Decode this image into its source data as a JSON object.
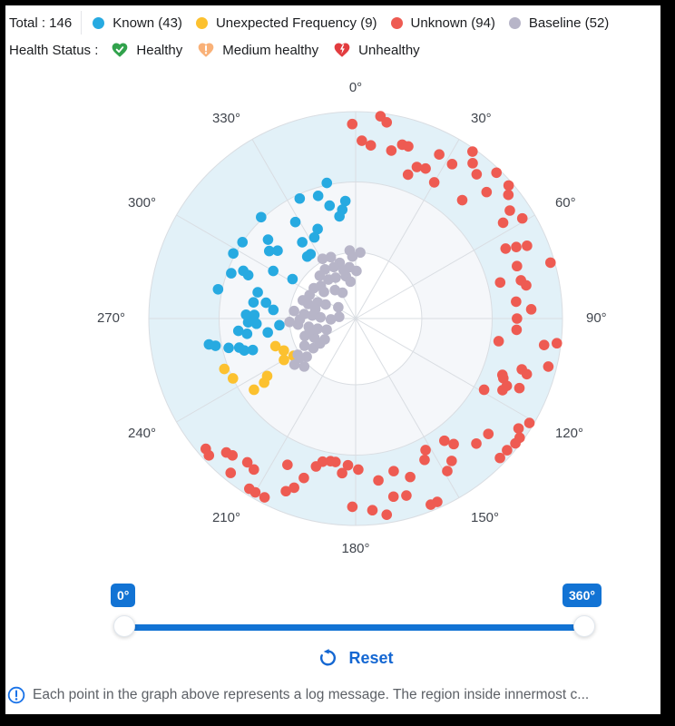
{
  "header": {
    "total_label": "Total : 146",
    "series_legend": [
      {
        "label": "Known (43)",
        "color": "#27aae1"
      },
      {
        "label": "Unexpected Frequency (9)",
        "color": "#fcc12f"
      },
      {
        "label": "Unknown (94)",
        "color": "#ee5b52"
      },
      {
        "label": "Baseline (52)",
        "color": "#b7b5c8"
      }
    ],
    "health_status_label": "Health Status :",
    "health_legend": [
      {
        "label": "Healthy",
        "icon": "heart-check-icon",
        "color": "#31a24c"
      },
      {
        "label": "Medium healthy",
        "icon": "heart-exclamation-icon",
        "color": "#f9b178"
      },
      {
        "label": "Unhealthy",
        "icon": "heart-bolt-icon",
        "color": "#e23c3f"
      }
    ]
  },
  "chart_data": {
    "type": "scatter",
    "coordinate_system": "polar",
    "title": "",
    "angle_axis": {
      "unit": "degrees",
      "start_at_top": true,
      "clockwise": true,
      "tick_labels": [
        "0°",
        "30°",
        "60°",
        "90°",
        "120°",
        "150°",
        "180°",
        "210°",
        "240°",
        "270°",
        "300°",
        "330°"
      ]
    },
    "radial_axis": {
      "range": [
        0,
        1
      ],
      "ring_fractions": [
        0.32,
        0.66,
        1.0
      ]
    },
    "ring_fills": [
      "#ffffff",
      "#f5f7fa",
      "#e2f1f8"
    ],
    "grid_color": "#d9dde2",
    "legend_position": "top",
    "point_radius": 5.8,
    "series": [
      {
        "name": "Known",
        "count": 43,
        "color": "#27aae1",
        "points": [
          [
            348,
            0.67
          ],
          [
            335,
            0.64
          ],
          [
            343,
            0.62
          ],
          [
            347,
            0.56
          ],
          [
            355,
            0.57
          ],
          [
            353,
            0.53
          ],
          [
            351,
            0.5
          ],
          [
            317,
            0.67
          ],
          [
            328,
            0.55
          ],
          [
            337,
            0.47
          ],
          [
            333,
            0.44
          ],
          [
            304,
            0.66
          ],
          [
            312,
            0.57
          ],
          [
            325,
            0.45
          ],
          [
            308,
            0.53
          ],
          [
            311,
            0.5
          ],
          [
            325,
            0.38
          ],
          [
            322,
            0.38
          ],
          [
            298,
            0.67
          ],
          [
            293,
            0.59
          ],
          [
            290,
            0.64
          ],
          [
            292,
            0.56
          ],
          [
            300,
            0.46
          ],
          [
            302,
            0.36
          ],
          [
            282,
            0.68
          ],
          [
            285,
            0.49
          ],
          [
            280,
            0.44
          ],
          [
            276,
            0.4
          ],
          [
            272,
            0.49
          ],
          [
            267,
            0.48
          ],
          [
            265,
            0.37
          ],
          [
            262,
            0.53
          ],
          [
            259,
            0.69
          ],
          [
            256,
            0.58
          ],
          [
            253,
            0.52
          ],
          [
            260,
            0.72
          ],
          [
            257,
            0.63
          ],
          [
            254,
            0.56
          ],
          [
            261,
            0.43
          ],
          [
            264,
            0.57
          ],
          [
            268,
            0.52
          ],
          [
            272,
            0.53
          ],
          [
            279,
            0.5
          ]
        ]
      },
      {
        "name": "Unexpected Frequency",
        "count": 9,
        "color": "#fcc12f",
        "points": [
          [
            251,
            0.41
          ],
          [
            246,
            0.38
          ],
          [
            240,
            0.4
          ],
          [
            249,
            0.68
          ],
          [
            244,
            0.66
          ],
          [
            237,
            0.51
          ],
          [
            235,
            0.54
          ],
          [
            235,
            0.6
          ],
          [
            239,
            0.35
          ]
        ]
      },
      {
        "name": "Unknown",
        "count": 94,
        "color": "#ee5b52",
        "points": [
          [
            7,
            0.99
          ],
          [
            359,
            0.94
          ],
          [
            9,
            0.96
          ],
          [
            2,
            0.86
          ],
          [
            5,
            0.84
          ],
          [
            12,
            0.83
          ],
          [
            15,
            0.87
          ],
          [
            17,
            0.87
          ],
          [
            27,
            0.89
          ],
          [
            22,
            0.79
          ],
          [
            25,
            0.8
          ],
          [
            20,
            0.74
          ],
          [
            30,
            0.76
          ],
          [
            32,
            0.88
          ],
          [
            35,
            0.99
          ],
          [
            37,
            0.94
          ],
          [
            40,
            0.91
          ],
          [
            44,
            0.98
          ],
          [
            49,
            0.98
          ],
          [
            51,
            0.95
          ],
          [
            46,
            0.88
          ],
          [
            42,
            0.77
          ],
          [
            55,
            0.91
          ],
          [
            57,
            0.85
          ],
          [
            59,
            0.94
          ],
          [
            67,
            0.9
          ],
          [
            66,
            0.85
          ],
          [
            65,
            0.8
          ],
          [
            74,
            0.98
          ],
          [
            72,
            0.82
          ],
          [
            77,
            0.82
          ],
          [
            79,
            0.84
          ],
          [
            76,
            0.72
          ],
          [
            84,
            0.78
          ],
          [
            87,
            0.85
          ],
          [
            90,
            0.78
          ],
          [
            94,
            0.78
          ],
          [
            99,
            0.7
          ],
          [
            98,
            0.92
          ],
          [
            97,
            0.98
          ],
          [
            104,
            0.96
          ],
          [
            107,
            0.84
          ],
          [
            111,
            0.76
          ],
          [
            116,
            0.79
          ],
          [
            113,
            0.86
          ],
          [
            119,
            0.71
          ],
          [
            112,
            0.77
          ],
          [
            114,
            0.8
          ],
          [
            108,
            0.87
          ],
          [
            124,
            0.95
          ],
          [
            126,
            0.98
          ],
          [
            128,
            0.98
          ],
          [
            121,
            0.98
          ],
          [
            131,
            0.85
          ],
          [
            136,
            0.84
          ],
          [
            144,
            0.73
          ],
          [
            142,
            0.77
          ],
          [
            152,
            0.72
          ],
          [
            154,
            0.76
          ],
          [
            146,
            0.83
          ],
          [
            149,
            0.86
          ],
          [
            134,
            0.97
          ],
          [
            131,
            0.97
          ],
          [
            166,
            0.76
          ],
          [
            161,
            0.81
          ],
          [
            168,
            0.88
          ],
          [
            164,
            0.89
          ],
          [
            156,
            0.97
          ],
          [
            158,
            0.97
          ],
          [
            181,
            0.91
          ],
          [
            175,
            0.93
          ],
          [
            171,
            0.96
          ],
          [
            172,
            0.79
          ],
          [
            185,
            0.75
          ],
          [
            183,
            0.71
          ],
          [
            179,
            0.73
          ],
          [
            188,
            0.7
          ],
          [
            190,
            0.7
          ],
          [
            193,
            0.71
          ],
          [
            195,
            0.74
          ],
          [
            198,
            0.81
          ],
          [
            200,
            0.87
          ],
          [
            202,
            0.9
          ],
          [
            205,
            0.78
          ],
          [
            207,
            0.97
          ],
          [
            210,
            0.97
          ],
          [
            212,
            0.97
          ],
          [
            219,
            0.96
          ],
          [
            229,
            0.96
          ],
          [
            227,
            0.97
          ],
          [
            224,
            0.9
          ],
          [
            222,
            0.89
          ],
          [
            217,
            0.87
          ],
          [
            214,
            0.88
          ]
        ]
      },
      {
        "name": "Baseline",
        "count": 52,
        "color": "#b7b5c8",
        "points": [
          [
            355,
            0.33
          ],
          [
            4,
            0.32
          ],
          [
            331,
            0.33
          ],
          [
            338,
            0.32
          ],
          [
            344,
            0.28
          ],
          [
            337,
            0.27
          ],
          [
            328,
            0.28
          ],
          [
            353,
            0.25
          ],
          [
            1,
            0.23
          ],
          [
            347,
            0.21
          ],
          [
            352,
            0.18
          ],
          [
            325,
            0.23
          ],
          [
            313,
            0.23
          ],
          [
            324,
            0.17
          ],
          [
            333,
            0.14
          ],
          [
            297,
            0.25
          ],
          [
            289,
            0.27
          ],
          [
            293,
            0.2
          ],
          [
            295,
            0.16
          ],
          [
            303,
            0.1
          ],
          [
            277,
            0.3
          ],
          [
            275,
            0.25
          ],
          [
            274,
            0.21
          ],
          [
            272,
            0.17
          ],
          [
            268,
            0.12
          ],
          [
            276,
            0.08
          ],
          [
            267,
            0.32
          ],
          [
            264,
            0.28
          ],
          [
            260,
            0.23
          ],
          [
            255,
            0.19
          ],
          [
            249,
            0.15
          ],
          [
            251,
            0.26
          ],
          [
            245,
            0.22
          ],
          [
            236,
            0.18
          ],
          [
            242,
            0.28
          ],
          [
            235,
            0.25
          ],
          [
            238,
            0.33
          ],
          [
            232,
            0.3
          ],
          [
            233,
            0.37
          ],
          [
            227,
            0.34
          ],
          [
            357,
            0.3
          ],
          [
            346,
            0.24
          ],
          [
            334,
            0.22
          ],
          [
            320,
            0.27
          ],
          [
            306,
            0.25
          ],
          [
            310,
            0.2
          ],
          [
            287,
            0.24
          ],
          [
            283,
            0.2
          ],
          [
            269,
            0.27
          ],
          [
            255,
            0.23
          ],
          [
            235,
            0.21
          ],
          [
            235,
            0.33
          ]
        ]
      }
    ]
  },
  "slider": {
    "min_label": "0°",
    "max_label": "360°",
    "min": 0,
    "max": 360,
    "accent_color": "#1273d4"
  },
  "controls": {
    "reset_label": "Reset"
  },
  "footer": {
    "note": "Each point in the graph above represents a log message. The region inside innermost c..."
  }
}
